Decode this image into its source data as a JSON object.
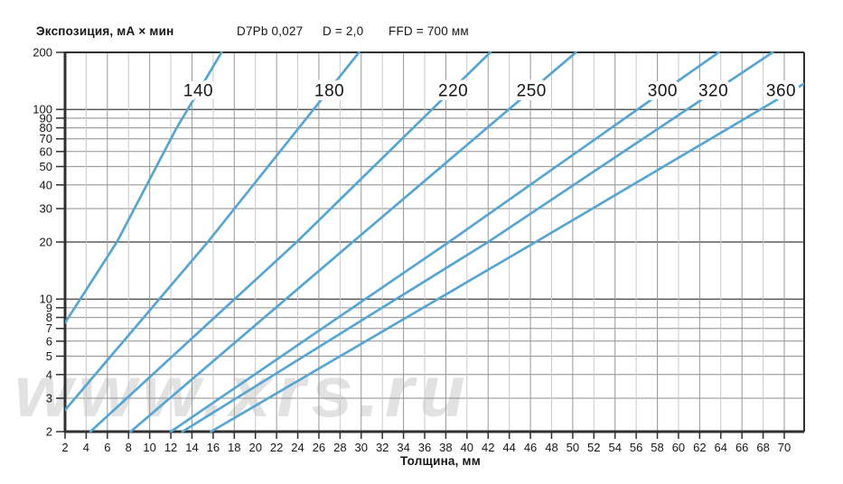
{
  "chart_data": {
    "type": "line",
    "title": "Экспозиция, мА × мин",
    "annotations": [
      "D7Pb 0,027",
      "D = 2,0",
      "FFD = 700 мм"
    ],
    "xlabel": "Толщина, мм",
    "ylabel": "Экспозиция, мА × мин",
    "x_scale": "linear",
    "y_scale": "log",
    "xlim": [
      2,
      72.1
    ],
    "ylim": [
      2,
      200
    ],
    "x_ticks": [
      2,
      4,
      6,
      8,
      10,
      12,
      14,
      16,
      18,
      20,
      22,
      24,
      26,
      28,
      30,
      32,
      34,
      36,
      38,
      40,
      42,
      44,
      46,
      48,
      50,
      52,
      54,
      56,
      58,
      60,
      62,
      64,
      66,
      68,
      70
    ],
    "y_ticks": [
      2,
      3,
      4,
      5,
      6,
      7,
      8,
      9,
      10,
      20,
      30,
      40,
      50,
      60,
      70,
      80,
      90,
      100,
      200
    ],
    "grid": true,
    "legend_position": "labels-on-lines",
    "series_label_exposure": 126,
    "series": [
      {
        "name": "140",
        "label_x": 14.6,
        "points": [
          [
            2,
            7.5
          ],
          [
            6.9,
            20
          ],
          [
            12.5,
            79
          ],
          [
            16.8,
            200
          ]
        ]
      },
      {
        "name": "180",
        "label_x": 27.0,
        "points": [
          [
            2,
            2.6
          ],
          [
            15.5,
            20
          ],
          [
            29.8,
            200
          ]
        ]
      },
      {
        "name": "220",
        "label_x": 38.7,
        "points": [
          [
            4.4,
            2
          ],
          [
            23.9,
            20
          ],
          [
            42.2,
            200
          ]
        ]
      },
      {
        "name": "250",
        "label_x": 46.1,
        "points": [
          [
            8.2,
            2
          ],
          [
            29.2,
            20
          ],
          [
            50.3,
            200
          ]
        ]
      },
      {
        "name": "300",
        "label_x": 58.5,
        "points": [
          [
            12.0,
            2
          ],
          [
            38.3,
            20
          ],
          [
            63.8,
            200
          ]
        ]
      },
      {
        "name": "320",
        "label_x": 63.3,
        "points": [
          [
            13.1,
            2
          ],
          [
            42.0,
            20
          ],
          [
            68.9,
            200
          ]
        ]
      },
      {
        "name": "360",
        "label_x": 69.7,
        "points": [
          [
            15.8,
            2
          ],
          [
            46.5,
            20
          ],
          [
            71.8,
            136
          ]
        ]
      }
    ],
    "line_color": "#55a6d4",
    "watermark": "www.xrs.ru",
    "colors": {
      "axis": "#303030",
      "grid_strong": "#3f3f3f",
      "grid_normal": "#8d8d8d",
      "grid_v_dark": "#979797",
      "grid_v_light": "#c9c9c9",
      "text": "#161616",
      "watermark": "#e2e2e2"
    }
  }
}
